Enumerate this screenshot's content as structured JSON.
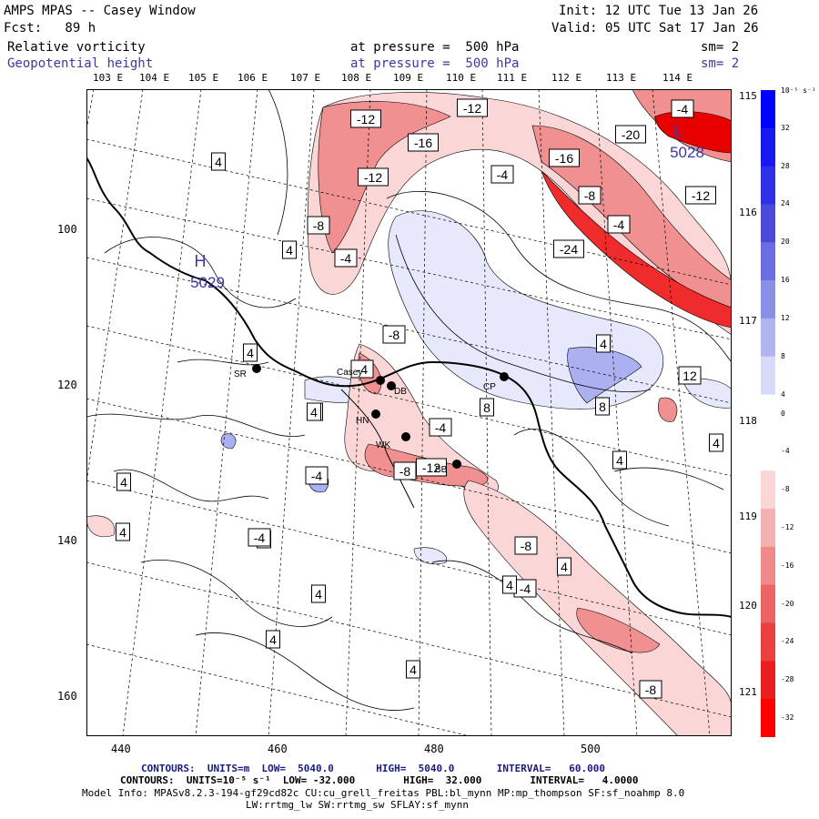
{
  "header": {
    "model": "AMPS MPAS -- Casey Window",
    "init": "Init: 12 UTC Tue 13 Jan 26",
    "fcst": "Fcst:   89 h",
    "valid": "Valid: 05 UTC Sat 17 Jan 26",
    "field1": "Relative vorticity",
    "field1_level": "at pressure =  500 hPa",
    "field1_sm": "sm= 2",
    "field2": "Geopotential height",
    "field2_level": "at pressure =  500 hPa",
    "field2_sm": "sm= 2"
  },
  "top_lon_labels": [
    "103 E",
    "104 E",
    "105 E",
    "106 E",
    "107 E",
    "108 E",
    "109 E",
    "110 E",
    "111 E",
    "112 E",
    "113 E",
    "114 E"
  ],
  "right_lon_labels": [
    "115 E",
    "116 E",
    "117 E",
    "118 E",
    "119 E",
    "120 E",
    "121 E"
  ],
  "x_ticks": [
    "440",
    "460",
    "480",
    "500"
  ],
  "y_ticks": [
    "100",
    "120",
    "140",
    "160"
  ],
  "colorbar": {
    "unit": "10⁻⁵ s⁻¹",
    "labels": [
      "32",
      "28",
      "24",
      "20",
      "16",
      "12",
      "8",
      "4",
      "0",
      "-4",
      "-8",
      "-12",
      "-16",
      "-20",
      "-24",
      "-28",
      "-32"
    ]
  },
  "pressure_systems": [
    {
      "type": "H",
      "value": "5029"
    },
    {
      "type": "L",
      "value": "5028"
    }
  ],
  "stations": [
    "SR",
    "Casey",
    "DB",
    "HN",
    "WK",
    "CP",
    "BB"
  ],
  "contour_labels": [
    "-12",
    "-16",
    "-12",
    "-8",
    "-4",
    "-8",
    "-4",
    "-12",
    "-4",
    "-16",
    "-8",
    "-24",
    "-4",
    "-4",
    "-20",
    "-12",
    "-8",
    "4",
    "4",
    "4",
    "4",
    "8",
    "12",
    "8",
    "8",
    "-4",
    "-4",
    "-12",
    "-8",
    "-4",
    "4",
    "4",
    "4",
    "4",
    "4",
    "4",
    "4",
    "4",
    "-8",
    "4",
    "-4",
    "4",
    "4"
  ],
  "footer": {
    "contours1": "CONTOURS:  UNITS=m  LOW=  5040.0       HIGH=  5040.0       INTERVAL=   60.000",
    "contours2": "CONTOURS:  UNITS=10⁻⁵ s⁻¹  LOW= -32.000        HIGH=  32.000        INTERVAL=   4.0000",
    "model_info": "Model Info: MPASv8.2.3-194-gf29cd82c CU:cu_grell_freitas PBL:bl_mynn MP:mp_thompson SF:sf_noahmp 8.0",
    "model_info2": "LW:rrtmg_lw SW:rrtmg_sw SFLAY:sf_mynn"
  },
  "colors": {
    "neg_strong": "#ff0000",
    "neg_mid": "#f08080",
    "neg_light": "#fbd8d8",
    "pos_light": "#e4e6fb",
    "pos_mid": "#a8aef0",
    "pos_strong": "#0000ff"
  }
}
